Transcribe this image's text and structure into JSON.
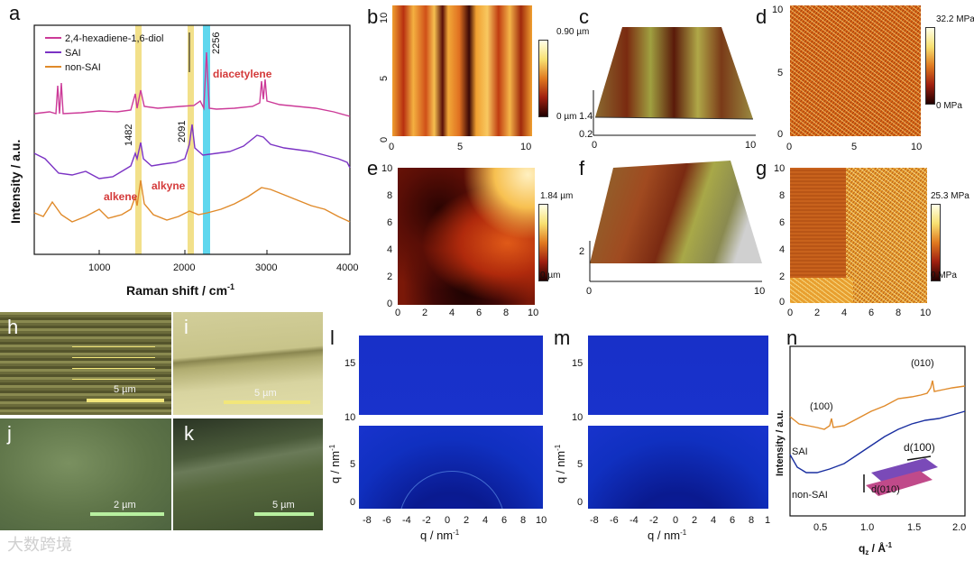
{
  "labels": {
    "a": "a",
    "b": "b",
    "c": "c",
    "d": "d",
    "e": "e",
    "f": "f",
    "g": "g",
    "h": "h",
    "i": "i",
    "j": "j",
    "k": "k",
    "l": "l",
    "m": "m",
    "n": "n"
  },
  "panel_a": {
    "legend": [
      "2,4-hexadiene-1,6-diol",
      "SAI",
      "non-SAI"
    ],
    "colors": {
      "diol": "#cc3a98",
      "sai": "#7b33c4",
      "nonsai": "#e08a2a",
      "yellow_band": "#f2e08a",
      "cyan_band": "#5fd7ee"
    },
    "peak_labels": {
      "p2256": "2256",
      "p1482": "1482",
      "p2091": "2091"
    },
    "annotations": {
      "diacetylene": "diacetylene",
      "alkene": "alkene",
      "alkyne": "alkyne"
    },
    "ylabel": "Intensity / a.u.",
    "xlabel": "Raman shift / cm",
    "xlabel_sup": "-1",
    "xticks": [
      "1000",
      "2000",
      "3000",
      "4000"
    ]
  },
  "panel_b": {
    "yticks": [
      "10",
      "5",
      "0"
    ],
    "xticks": [
      "0",
      "5",
      "10"
    ],
    "cb_top": "0.90 µm",
    "cb_bot": "0 µm"
  },
  "panel_c": {
    "zticks": [
      "1.4",
      "0.2"
    ],
    "xticks": [
      "0",
      "10"
    ]
  },
  "panel_d": {
    "yticks": [
      "10",
      "5",
      "0"
    ],
    "xticks": [
      "0",
      "5",
      "10"
    ],
    "cb_top": "32.2 MPa",
    "cb_bot": "0 MPa"
  },
  "panel_e": {
    "yticks": [
      "10",
      "8",
      "6",
      "4",
      "2",
      "0"
    ],
    "xticks": [
      "0",
      "2",
      "4",
      "6",
      "8",
      "10"
    ],
    "cb_top": "1.84 µm",
    "cb_bot": "0 µm"
  },
  "panel_f": {
    "zticks": [
      "2"
    ],
    "xticks": [
      "0",
      "10"
    ]
  },
  "panel_g": {
    "yticks": [
      "10",
      "8",
      "6",
      "4",
      "2",
      "0"
    ],
    "xticks": [
      "0",
      "2",
      "4",
      "6",
      "8",
      "10"
    ],
    "cb_top": "25.3 MPa",
    "cb_bot": "0 MPa"
  },
  "sem": {
    "h": "5 µm",
    "i": "5 µm",
    "j": "2 µm",
    "k": "5 µm"
  },
  "panel_l": {
    "ylabel": "q / nm",
    "ylabel_sup": "-1",
    "xlabel": "q / nm",
    "xlabel_sup": "-1",
    "yticks": [
      "15",
      "10",
      "5",
      "0"
    ],
    "xticks": [
      "-8",
      "-6",
      "-4",
      "-2",
      "0",
      "2",
      "4",
      "6",
      "8",
      "10"
    ]
  },
  "panel_m": {
    "ylabel": "q / nm",
    "ylabel_sup": "-1",
    "xlabel": "q / nm",
    "xlabel_sup": "-1",
    "yticks": [
      "15",
      "10",
      "5",
      "0"
    ],
    "xticks": [
      "-8",
      "-6",
      "-4",
      "-2",
      "0",
      "2",
      "4",
      "6",
      "8",
      "1"
    ]
  },
  "panel_n": {
    "ylabel": "Intensity / a.u.",
    "xlabel": "q",
    "xlabel_sub": "z",
    "xlabel_unit": " / Å",
    "xlabel_sup": "-1",
    "xticks": [
      "0.5",
      "1.0",
      "1.5",
      "2.0"
    ],
    "peaks": {
      "p100": "(100)",
      "p010": "(010)"
    },
    "series": {
      "sai": "SAI",
      "nonsai": "non-SAI"
    },
    "d100": "d(100)",
    "d010": "d(010)",
    "colors": {
      "sai": "#e08a2a",
      "nonsai": "#1a2fa0"
    }
  },
  "watermark": "大数跨境"
}
